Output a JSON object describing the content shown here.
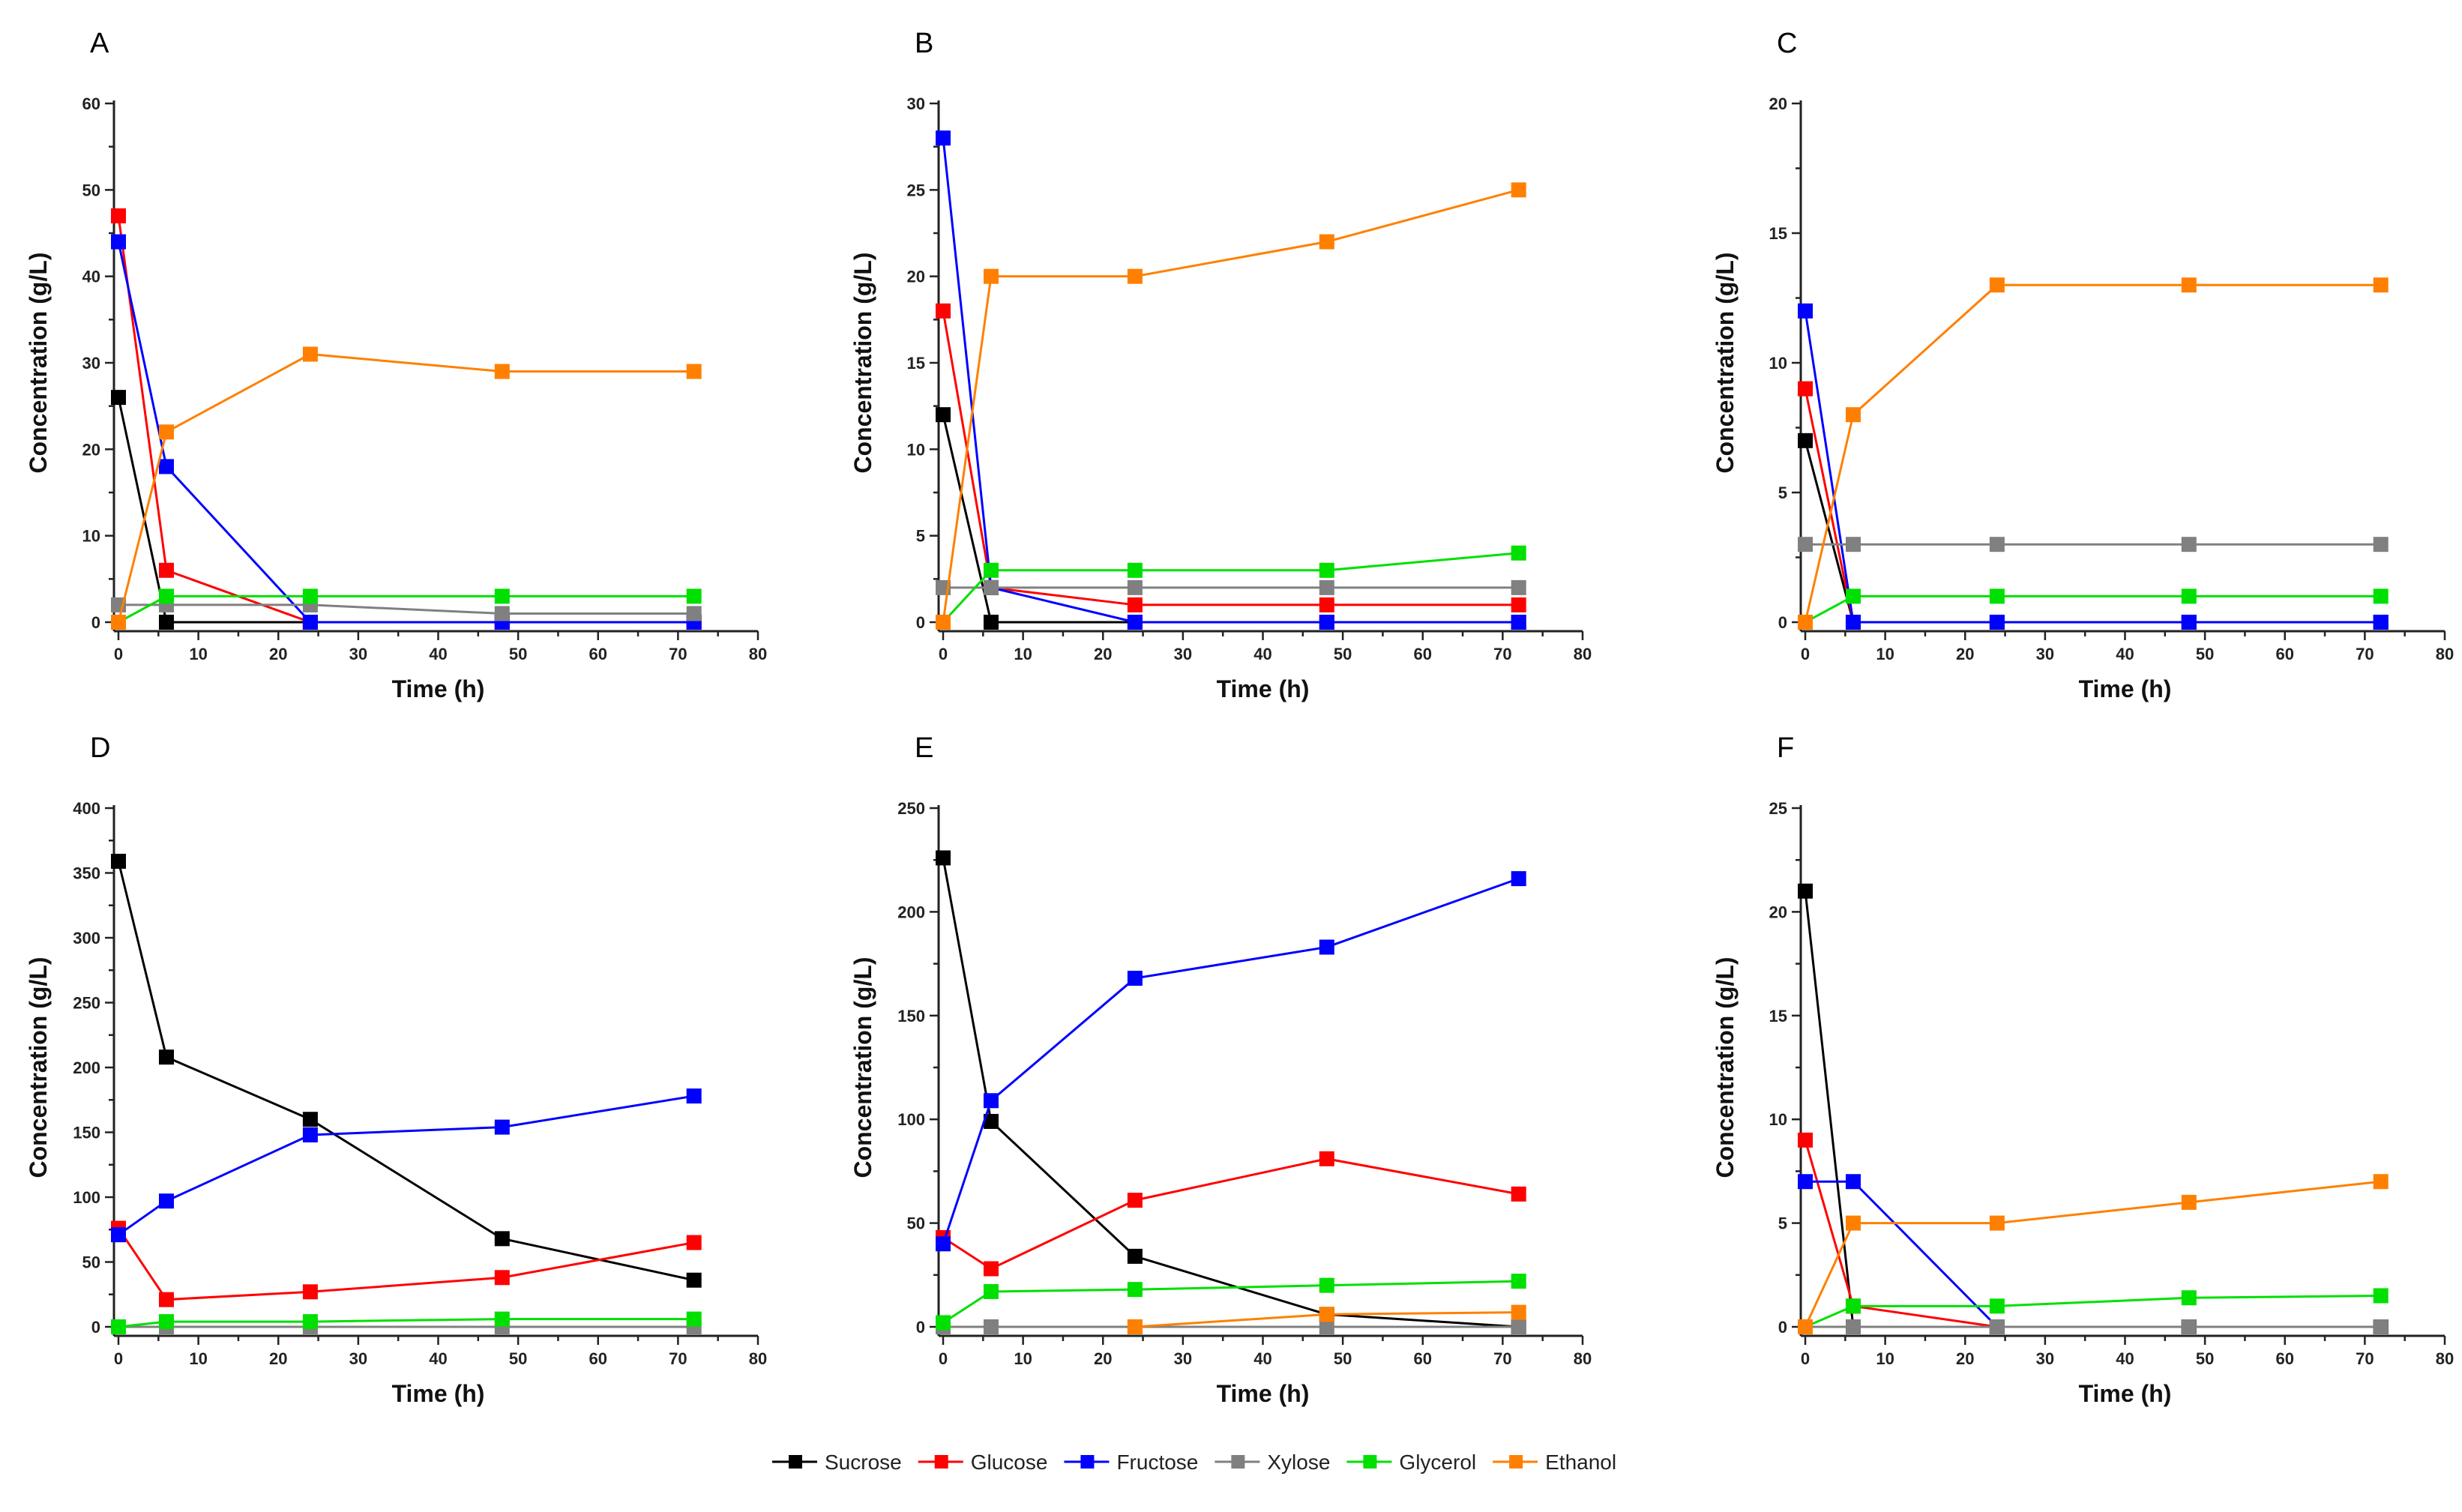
{
  "legend": [
    {
      "name": "Sucrose",
      "color": "#000000"
    },
    {
      "name": "Glucose",
      "color": "#ff0000"
    },
    {
      "name": "Fructose",
      "color": "#0000ff"
    },
    {
      "name": "Xylose",
      "color": "#808080"
    },
    {
      "name": "Glycerol",
      "color": "#00e000"
    },
    {
      "name": "Ethanol",
      "color": "#ff8000"
    }
  ],
  "chart_data": [
    {
      "panel": "A",
      "type": "line",
      "xlabel": "Time (h)",
      "ylabel": "Concentration (g/L)",
      "xlim": [
        0,
        80
      ],
      "ylim": [
        0,
        60
      ],
      "ytick_step": 10,
      "x": [
        0,
        6,
        24,
        48,
        72
      ],
      "series": [
        {
          "name": "Sucrose",
          "values": [
            26,
            0,
            0,
            0,
            0
          ]
        },
        {
          "name": "Glucose",
          "values": [
            47,
            6,
            0,
            0,
            0
          ]
        },
        {
          "name": "Fructose",
          "values": [
            44,
            18,
            0,
            0,
            0
          ]
        },
        {
          "name": "Xylose",
          "values": [
            2,
            2,
            2,
            1,
            1
          ]
        },
        {
          "name": "Glycerol",
          "values": [
            0,
            3,
            3,
            3,
            3
          ]
        },
        {
          "name": "Ethanol",
          "values": [
            0,
            22,
            31,
            29,
            29
          ]
        }
      ]
    },
    {
      "panel": "B",
      "type": "line",
      "xlabel": "Time (h)",
      "ylabel": "Concentration (g/L)",
      "xlim": [
        0,
        80
      ],
      "ylim": [
        0,
        30
      ],
      "ytick_step": 5,
      "x": [
        0,
        6,
        24,
        48,
        72
      ],
      "series": [
        {
          "name": "Sucrose",
          "values": [
            12,
            0,
            0,
            0,
            0
          ]
        },
        {
          "name": "Glucose",
          "values": [
            18,
            2,
            1,
            1,
            1
          ]
        },
        {
          "name": "Fructose",
          "values": [
            28,
            2,
            0,
            0,
            0
          ]
        },
        {
          "name": "Xylose",
          "values": [
            2,
            2,
            2,
            2,
            2
          ]
        },
        {
          "name": "Glycerol",
          "values": [
            0,
            3,
            3,
            3,
            4
          ]
        },
        {
          "name": "Ethanol",
          "values": [
            0,
            20,
            20,
            22,
            25
          ]
        }
      ]
    },
    {
      "panel": "C",
      "type": "line",
      "xlabel": "Time (h)",
      "ylabel": "Concentration (g/L)",
      "xlim": [
        0,
        80
      ],
      "ylim": [
        0,
        20
      ],
      "ytick_step": 5,
      "x": [
        0,
        6,
        24,
        48,
        72
      ],
      "series": [
        {
          "name": "Sucrose",
          "values": [
            7,
            0,
            0,
            0,
            0
          ]
        },
        {
          "name": "Glucose",
          "values": [
            9,
            0,
            0,
            0,
            0
          ]
        },
        {
          "name": "Fructose",
          "values": [
            12,
            0,
            0,
            0,
            0
          ]
        },
        {
          "name": "Xylose",
          "values": [
            3,
            3,
            3,
            3,
            3
          ]
        },
        {
          "name": "Glycerol",
          "values": [
            0,
            1,
            1,
            1,
            1
          ]
        },
        {
          "name": "Ethanol",
          "values": [
            0,
            8,
            13,
            13,
            13
          ]
        }
      ]
    },
    {
      "panel": "D",
      "type": "line",
      "xlabel": "Time (h)",
      "ylabel": "Concentration (g/L)",
      "xlim": [
        0,
        80
      ],
      "ylim": [
        0,
        400
      ],
      "ytick_step": 50,
      "x": [
        0,
        6,
        24,
        48,
        72
      ],
      "series": [
        {
          "name": "Sucrose",
          "values": [
            359,
            208,
            160,
            68,
            36
          ]
        },
        {
          "name": "Glucose",
          "values": [
            76,
            21,
            27,
            38,
            65
          ]
        },
        {
          "name": "Fructose",
          "values": [
            71,
            97,
            148,
            154,
            178
          ]
        },
        {
          "name": "Xylose",
          "values": [
            0,
            0,
            0,
            0,
            0
          ]
        },
        {
          "name": "Glycerol",
          "values": [
            0,
            4,
            4,
            6,
            6
          ]
        },
        {
          "name": "Ethanol",
          "values": [
            null,
            null,
            null,
            null,
            null
          ]
        }
      ]
    },
    {
      "panel": "E",
      "type": "line",
      "xlabel": "Time (h)",
      "ylabel": "Concentration (g/L)",
      "xlim": [
        0,
        80
      ],
      "ylim": [
        0,
        250
      ],
      "ytick_step": 50,
      "x": [
        0,
        6,
        24,
        48,
        72
      ],
      "series": [
        {
          "name": "Sucrose",
          "values": [
            226,
            99,
            34,
            6,
            0
          ]
        },
        {
          "name": "Glucose",
          "values": [
            43,
            28,
            61,
            81,
            64
          ]
        },
        {
          "name": "Fructose",
          "values": [
            40,
            109,
            168,
            183,
            216
          ]
        },
        {
          "name": "Xylose",
          "values": [
            0,
            0,
            0,
            0,
            0
          ]
        },
        {
          "name": "Glycerol",
          "values": [
            2,
            17,
            18,
            20,
            22
          ]
        },
        {
          "name": "Ethanol",
          "values": [
            null,
            null,
            0,
            6,
            7
          ]
        }
      ]
    },
    {
      "panel": "F",
      "type": "line",
      "xlabel": "Time (h)",
      "ylabel": "Concentration (g/L)",
      "xlim": [
        0,
        80
      ],
      "ylim": [
        0,
        25
      ],
      "ytick_step": 5,
      "x": [
        0,
        6,
        24,
        48,
        72
      ],
      "series": [
        {
          "name": "Sucrose",
          "values": [
            21,
            0,
            0,
            0,
            0
          ]
        },
        {
          "name": "Glucose",
          "values": [
            9,
            1,
            0,
            0,
            0
          ]
        },
        {
          "name": "Fructose",
          "values": [
            7,
            7,
            0,
            0,
            0
          ]
        },
        {
          "name": "Xylose",
          "values": [
            0,
            0,
            0,
            0,
            0
          ]
        },
        {
          "name": "Glycerol",
          "values": [
            0,
            1,
            1,
            1.4,
            1.5
          ]
        },
        {
          "name": "Ethanol",
          "values": [
            0,
            5,
            5,
            6,
            7
          ]
        }
      ]
    }
  ]
}
